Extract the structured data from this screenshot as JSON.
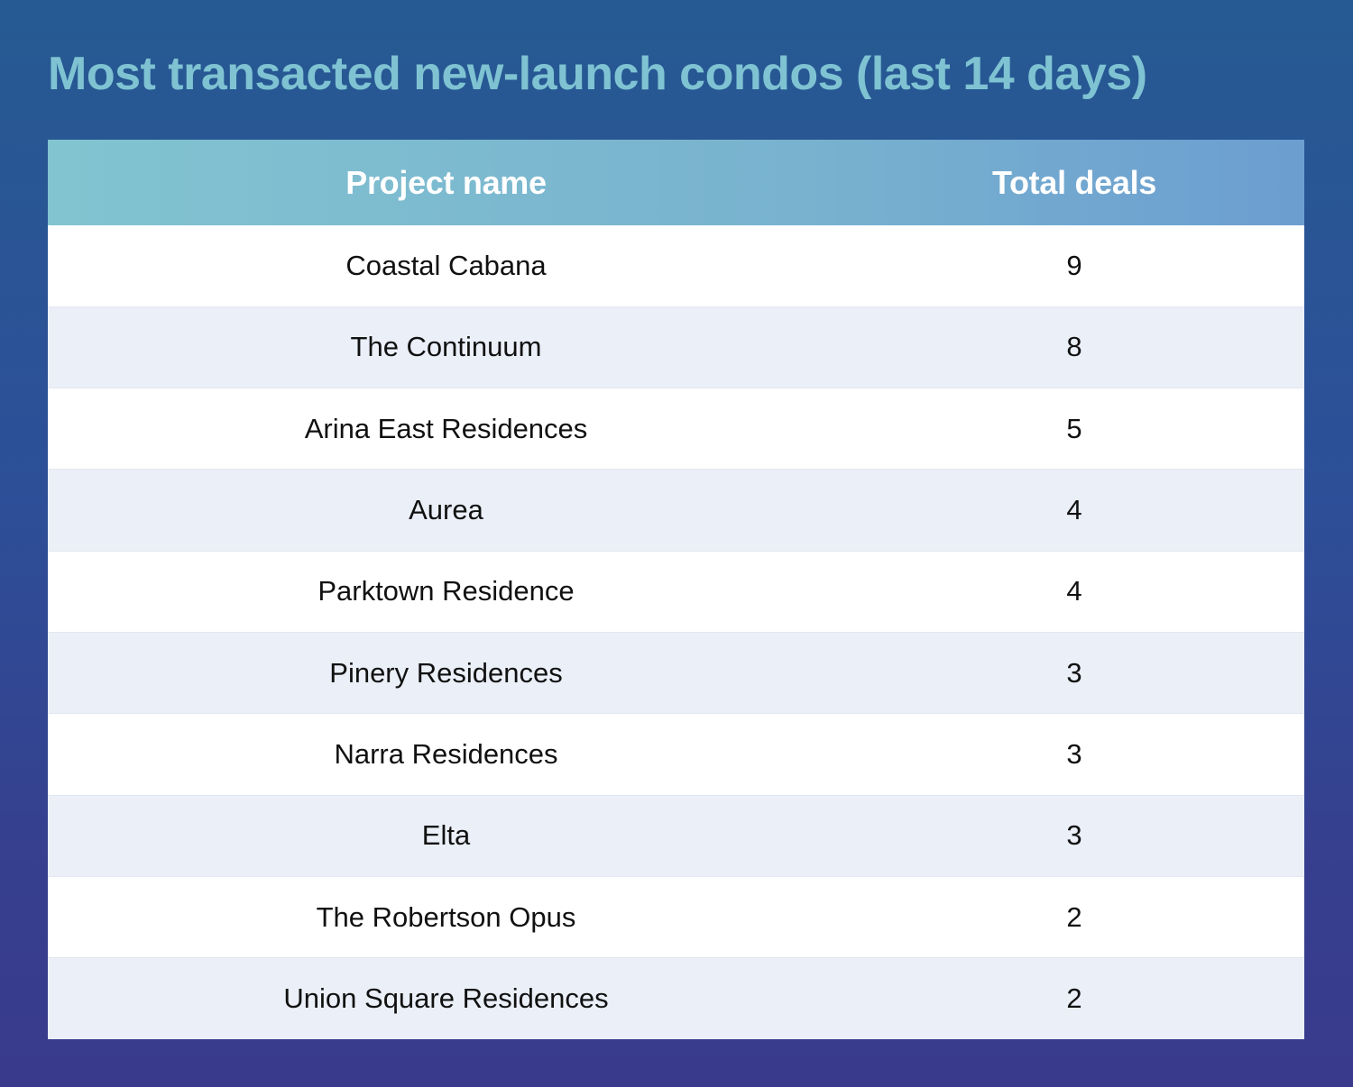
{
  "chart_data": {
    "type": "table",
    "title": "Most transacted new-launch condos (last 14 days)",
    "columns": [
      "Project name",
      "Total deals"
    ],
    "rows": [
      {
        "project": "Coastal Cabana",
        "deals": "9"
      },
      {
        "project": "The Continuum",
        "deals": "8"
      },
      {
        "project": "Arina East Residences",
        "deals": "5"
      },
      {
        "project": "Aurea",
        "deals": "4"
      },
      {
        "project": "Parktown Residence",
        "deals": "4"
      },
      {
        "project": "Pinery Residences",
        "deals": "3"
      },
      {
        "project": "Narra Residences",
        "deals": "3"
      },
      {
        "project": "Elta",
        "deals": "3"
      },
      {
        "project": "The Robertson Opus",
        "deals": "2"
      },
      {
        "project": "Union Square Residences",
        "deals": "2"
      }
    ]
  },
  "colors": {
    "title": "#7fc3d3",
    "header_start": "#82c4d0",
    "header_end": "#6c9ed0",
    "row_alt": "#eaeff8",
    "background_top": "#265a92",
    "background_bottom": "#3a3a8c"
  }
}
